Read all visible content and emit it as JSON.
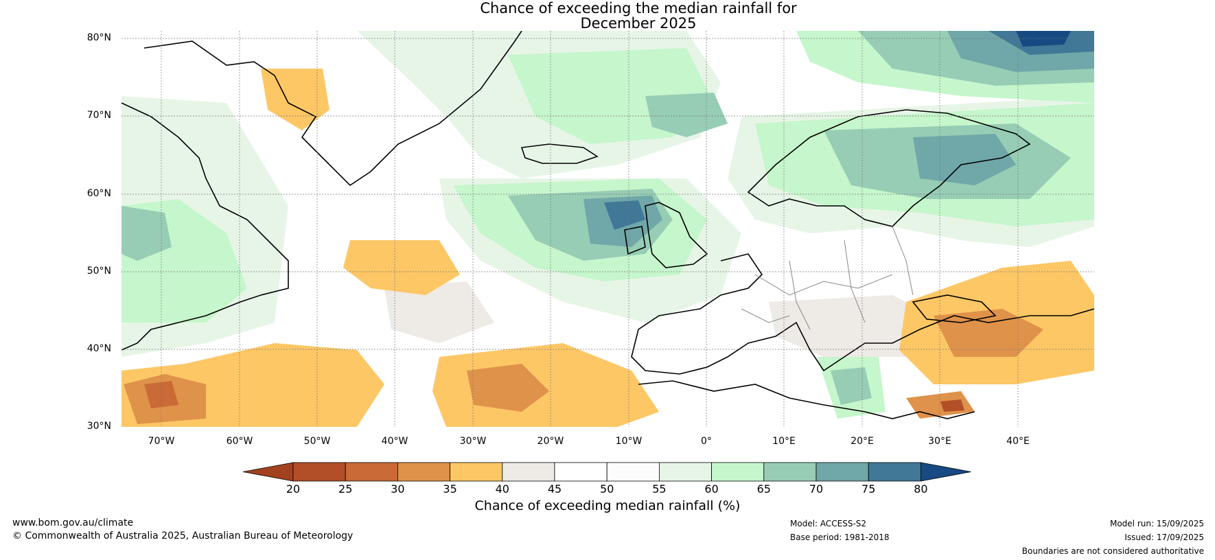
{
  "title_line1": "Chance of exceeding the median rainfall for",
  "title_line2": "December 2025",
  "lat_labels": [
    "80°N",
    "70°N",
    "60°N",
    "50°N",
    "40°N",
    "30°N"
  ],
  "lon_labels": [
    "70°W",
    "60°W",
    "50°W",
    "40°W",
    "30°W",
    "20°W",
    "10°W",
    "0°",
    "10°E",
    "20°E",
    "30°E",
    "40°E"
  ],
  "colorbar": {
    "ticks": [
      "20",
      "25",
      "30",
      "35",
      "40",
      "45",
      "50",
      "55",
      "60",
      "65",
      "70",
      "75",
      "80"
    ],
    "colors": [
      "#a2421f",
      "#b24f28",
      "#c96a37",
      "#df924a",
      "#fdc765",
      "#eeeae6",
      "#ffffff",
      "#fbfcfb",
      "#e7f5e7",
      "#c6f6cb",
      "#97cdb5",
      "#70a7a8",
      "#417797",
      "#174a82"
    ],
    "label": "Chance of exceeding median rainfall (%)"
  },
  "footer": {
    "website": "www.bom.gov.au/climate",
    "copyright": "© Commonwealth of Australia 2025, Australian Bureau of Meteorology",
    "model": "Model: ACCESS-S2",
    "base_period": "Base period: 1981-2018",
    "model_run": "Model run: 15/09/2025",
    "issued": "Issued: 17/09/2025",
    "disclaimer": "Boundaries are not considered authoritative"
  }
}
